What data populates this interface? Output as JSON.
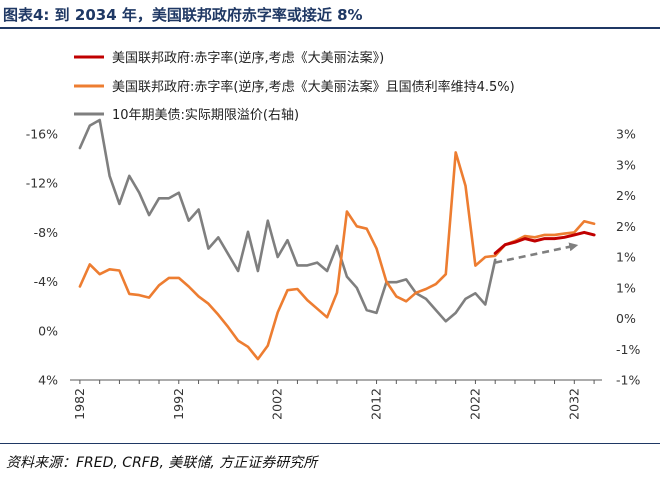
{
  "figure": {
    "title": "图表4: 到 2034 年，美国联邦政府赤字率或接近 8%",
    "source": "资料来源：FRED, CRFB, 美联储, 方正证券研究所"
  },
  "colors": {
    "series_dark_red": "#c00000",
    "series_orange": "#ed7d31",
    "series_gray": "#7f7f7f",
    "title_navy": "#1f3864"
  },
  "chart_data": {
    "type": "line",
    "legend_position": "top-left",
    "grid": false,
    "x_tick_labels": [
      "1982",
      "1992",
      "2002",
      "2012",
      "2022",
      "2032"
    ],
    "y_left": {
      "tick_labels": [
        "-16%",
        "-12%",
        "-8%",
        "-4%",
        "0%",
        "4%"
      ],
      "range": [
        -16,
        4
      ],
      "inverted": true
    },
    "y_right": {
      "tick_labels": [
        "3%",
        "3%",
        "2%",
        "2%",
        "1%",
        "1%",
        "0%",
        "-1%",
        "-1%"
      ],
      "range": [
        -1.2,
        3.2
      ]
    },
    "series": [
      {
        "name": "美国联邦政府:赤字率(逆序,考虑《大美丽法案》)",
        "axis": "left",
        "color": "#c00000",
        "x": [
          2024,
          2025,
          2026,
          2027,
          2028,
          2029,
          2030,
          2031,
          2032,
          2033,
          2034
        ],
        "y": [
          -6.3,
          -7.0,
          -7.2,
          -7.5,
          -7.3,
          -7.5,
          -7.5,
          -7.6,
          -7.8,
          -8.0,
          -7.8
        ]
      },
      {
        "name": "美国联邦政府:赤字率(逆序,考虑《大美丽法案》且国债利率维持4.5%)",
        "axis": "left",
        "color": "#ed7d31",
        "x": [
          1982,
          1983,
          1984,
          1985,
          1986,
          1987,
          1988,
          1989,
          1990,
          1991,
          1992,
          1993,
          1994,
          1995,
          1996,
          1997,
          1998,
          1999,
          2000,
          2001,
          2002,
          2003,
          2004,
          2005,
          2006,
          2007,
          2008,
          2009,
          2010,
          2011,
          2012,
          2013,
          2014,
          2015,
          2016,
          2017,
          2018,
          2019,
          2020,
          2021,
          2022,
          2023,
          2024,
          2025,
          2026,
          2027,
          2028,
          2029,
          2030,
          2031,
          2032,
          2033,
          2034
        ],
        "y": [
          -3.6,
          -5.4,
          -4.6,
          -5.0,
          -4.9,
          -3.0,
          -2.9,
          -2.7,
          -3.7,
          -4.3,
          -4.3,
          -3.6,
          -2.8,
          -2.2,
          -1.3,
          -0.3,
          0.8,
          1.3,
          2.3,
          1.2,
          -1.5,
          -3.3,
          -3.4,
          -2.5,
          -1.8,
          -1.1,
          -3.1,
          -9.7,
          -8.5,
          -8.3,
          -6.7,
          -4.0,
          -2.8,
          -2.4,
          -3.1,
          -3.4,
          -3.8,
          -4.6,
          -14.5,
          -11.8,
          -5.3,
          -6.0,
          -6.1,
          -7.0,
          -7.3,
          -7.7,
          -7.6,
          -7.8,
          -7.8,
          -7.9,
          -8.0,
          -8.9,
          -8.7
        ]
      },
      {
        "name": "10年期美债:实际期限溢价(右轴)",
        "axis": "right",
        "color": "#7f7f7f",
        "x": [
          1982,
          1983,
          1984,
          1985,
          1986,
          1987,
          1988,
          1989,
          1990,
          1991,
          1992,
          1993,
          1994,
          1995,
          1996,
          1997,
          1998,
          1999,
          2000,
          2001,
          2002,
          2003,
          2004,
          2005,
          2006,
          2007,
          2008,
          2009,
          2010,
          2011,
          2012,
          2013,
          2014,
          2015,
          2016,
          2017,
          2018,
          2019,
          2020,
          2021,
          2022,
          2023,
          2024
        ],
        "y": [
          2.95,
          3.35,
          3.45,
          2.45,
          1.95,
          2.45,
          2.15,
          1.75,
          2.05,
          2.05,
          2.15,
          1.65,
          1.85,
          1.15,
          1.35,
          1.05,
          0.75,
          1.45,
          0.75,
          1.65,
          1.0,
          1.3,
          0.85,
          0.85,
          0.9,
          0.75,
          1.2,
          0.65,
          0.45,
          0.05,
          0.0,
          0.55,
          0.55,
          0.6,
          0.35,
          0.25,
          0.05,
          -0.15,
          0.0,
          0.25,
          0.35,
          0.15,
          0.95
        ]
      }
    ],
    "annotations": [
      {
        "type": "dashed-arrow",
        "color": "#7f7f7f",
        "from": [
          2024,
          0.9
        ],
        "to": [
          2032,
          1.2
        ]
      }
    ]
  }
}
